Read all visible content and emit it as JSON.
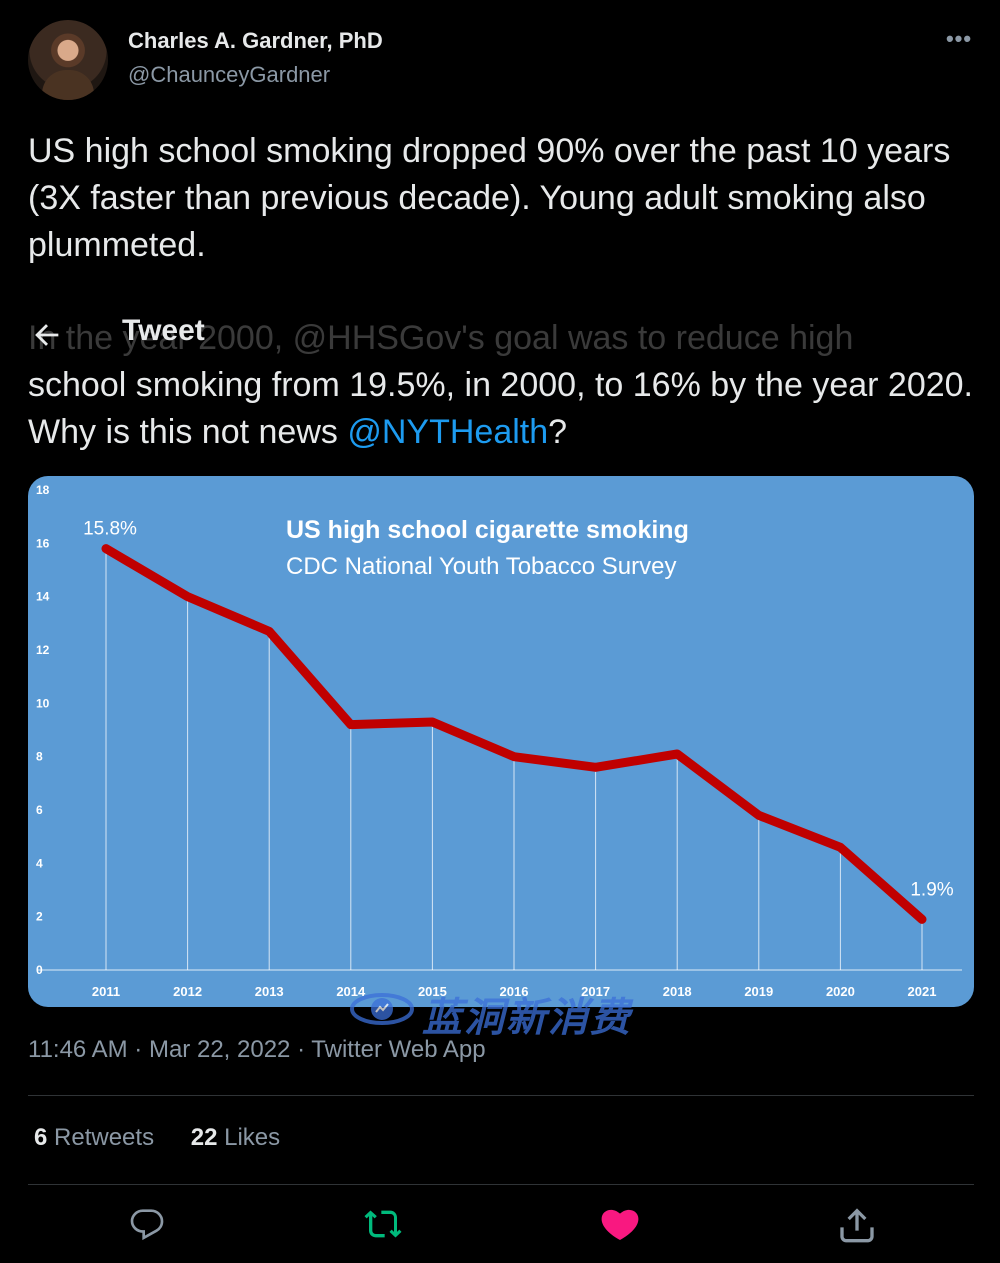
{
  "author": {
    "display_name": "Charles A. Gardner, PhD",
    "handle": "@ChaunceyGardner"
  },
  "more_label": "•••",
  "tweet": {
    "text": "US high school smoking dropped 90% over the past 10 years (3X faster than previous decade).  Young adult smoking also plummeted."
  },
  "header": {
    "title": "Tweet",
    "ghost_line": "In the year 2000, @HHSGov's goal was to reduce high"
  },
  "quote": {
    "text_before": "school smoking from 19.5%, in 2000, to 16% by the year 2020.  Why is this not news ",
    "mention": "@NYTHealth",
    "text_after": "?"
  },
  "chart_data": {
    "type": "line",
    "title": "US high school cigarette smoking",
    "subtitle": "CDC National Youth Tobacco Survey",
    "x": [
      "2011",
      "2012",
      "2013",
      "2014",
      "2015",
      "2016",
      "2017",
      "2018",
      "2019",
      "2020",
      "2021"
    ],
    "series": [
      {
        "values": [
          15.8,
          14.0,
          12.7,
          9.2,
          9.3,
          8.0,
          7.6,
          8.1,
          5.8,
          4.6,
          1.9
        ]
      }
    ],
    "annotations": [
      {
        "x": "2011",
        "label": "15.8%"
      },
      {
        "x": "2021",
        "label": "1.9%"
      }
    ],
    "yticks": [
      "0",
      "2",
      "4",
      "6",
      "8",
      "10",
      "12",
      "14",
      "16",
      "18"
    ],
    "ylim": [
      0,
      18
    ],
    "vertical_gridlines": true,
    "colors": {
      "background": "#5b9bd5",
      "line": "#c00000",
      "text": "#ffffff"
    }
  },
  "watermark": {
    "text": "蓝洞新消费"
  },
  "meta": {
    "time": "11:46 AM",
    "date": "Mar 22, 2022",
    "source": "Twitter Web App",
    "sep": "·"
  },
  "stats": {
    "retweets_count": "6",
    "retweets_label": "Retweets",
    "likes_count": "22",
    "likes_label": "Likes"
  },
  "actions": {
    "reply_icon": "reply-icon",
    "retweet_icon": "retweet-icon",
    "like_icon": "heart-icon",
    "share_icon": "share-icon",
    "retweet_color": "#00ba7c",
    "like_color": "#f91880"
  }
}
